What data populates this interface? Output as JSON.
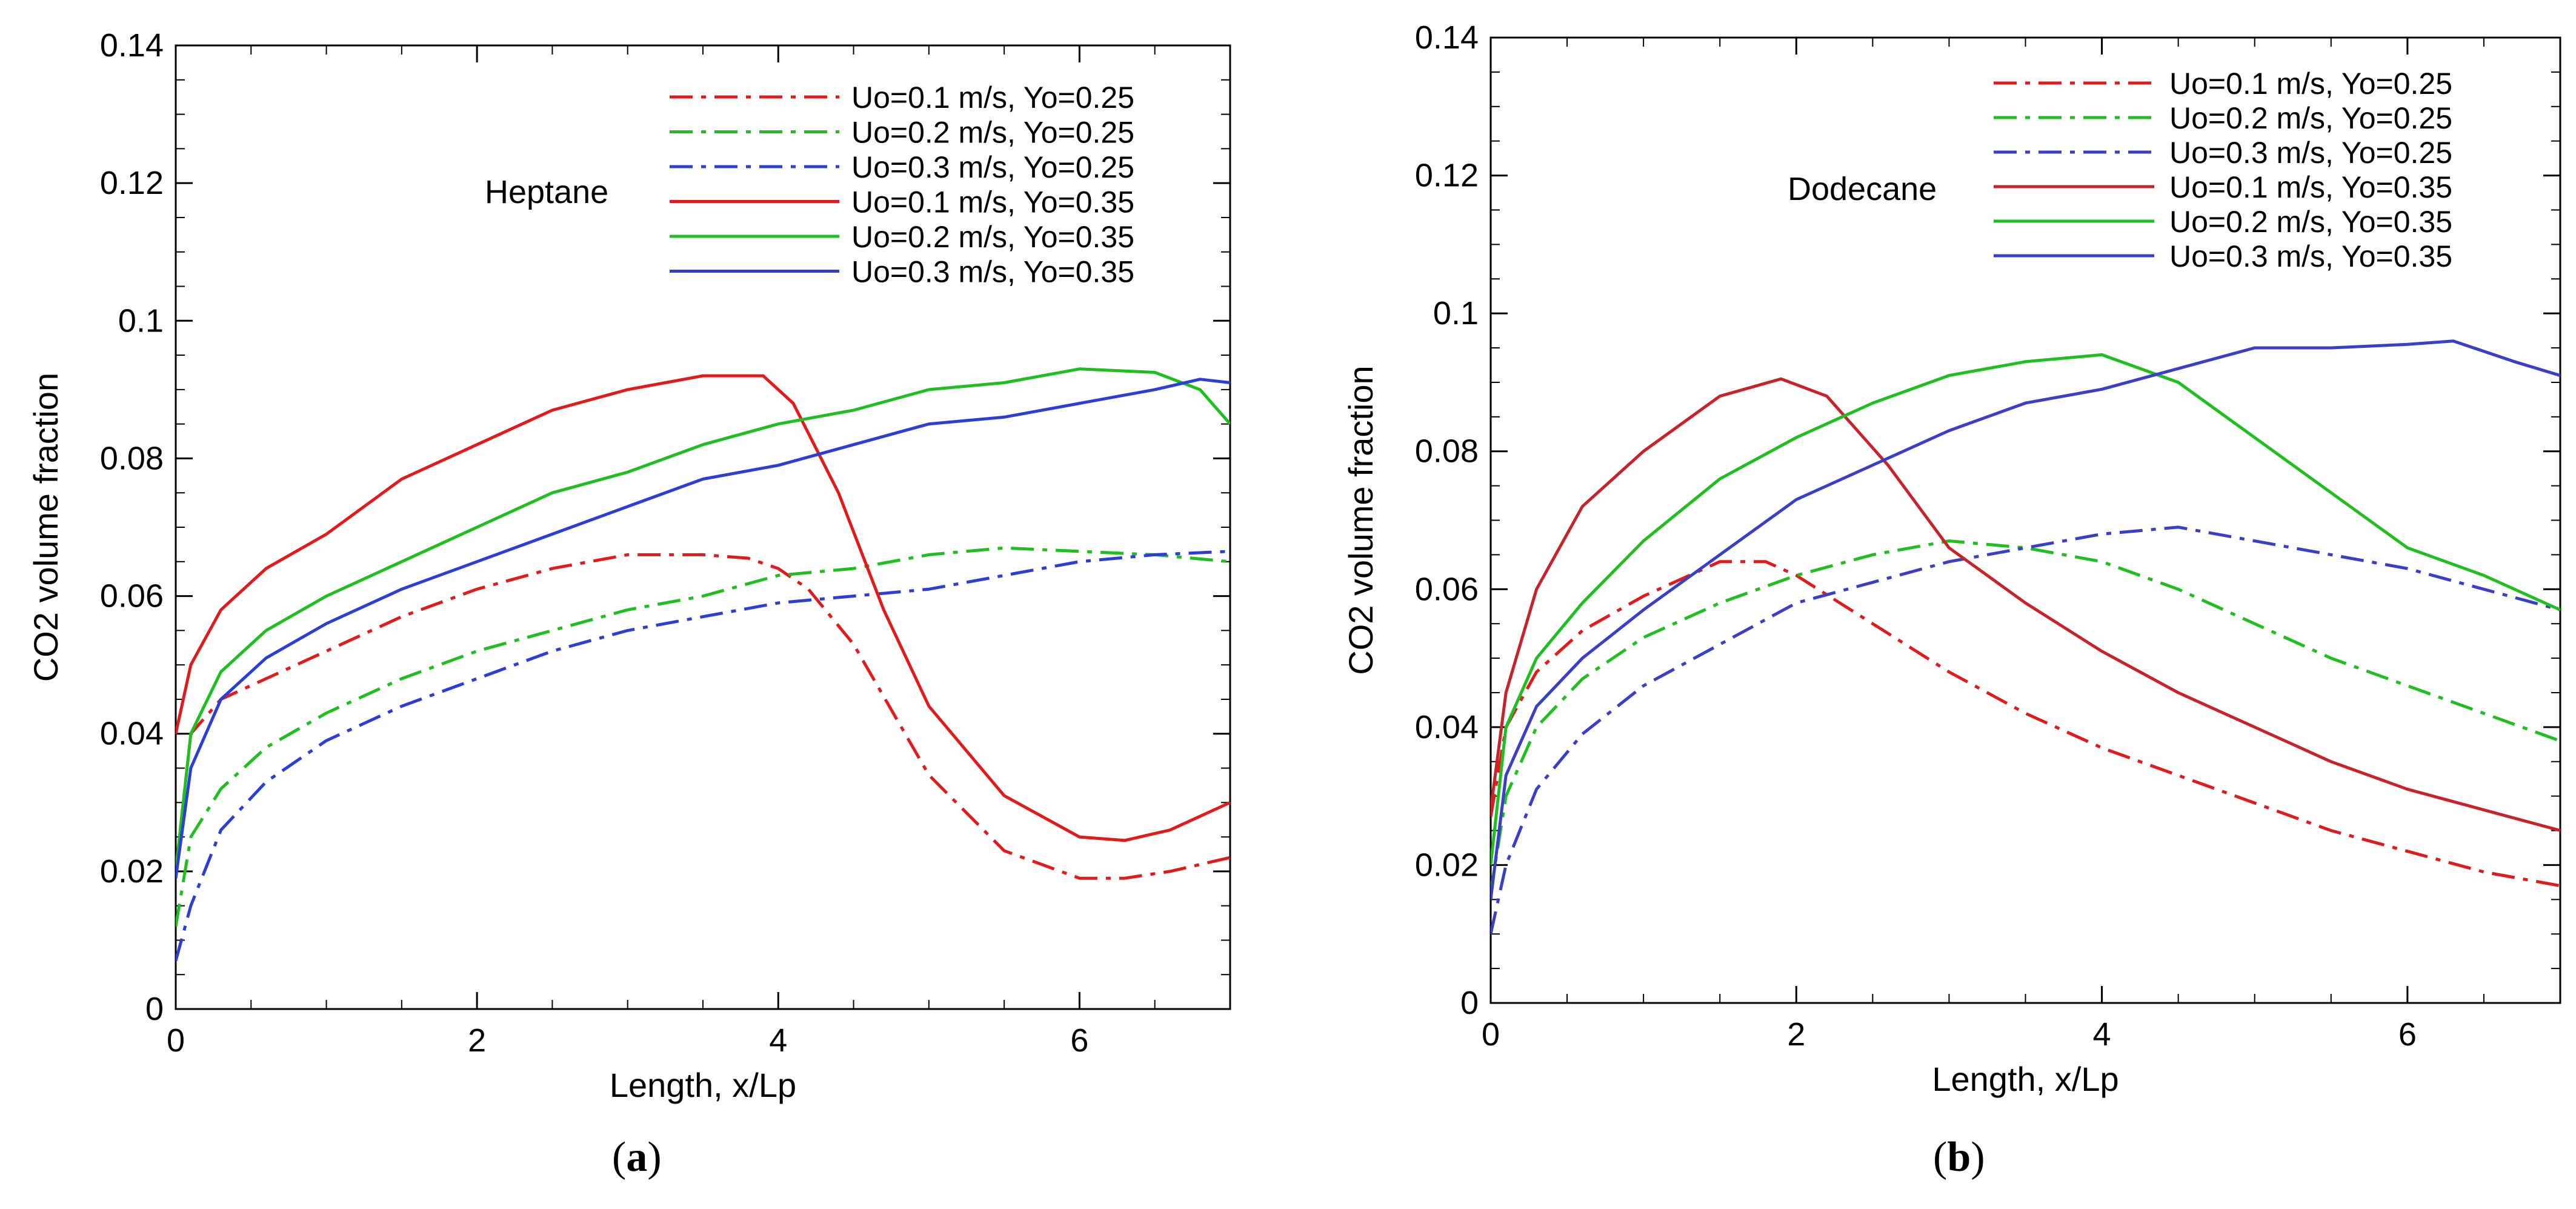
{
  "chart_data": [
    {
      "type": "line",
      "panel_label": "a",
      "annotation": "Heptane",
      "xlabel": "Length, x/Lp",
      "ylabel": "CO2 volume fraction",
      "xlim": [
        0,
        7
      ],
      "ylim": [
        0,
        0.14
      ],
      "xticks": [
        "0",
        "2",
        "4",
        "6"
      ],
      "yticks": [
        "0",
        "0.02",
        "0.04",
        "0.06",
        "0.08",
        "0.1",
        "0.12",
        "0.14"
      ],
      "grid": false,
      "legend_position": "top-right",
      "series": [
        {
          "name": "Uo=0.1 m/s, Yo=0.25",
          "color": "#e31a1c",
          "dash": "dashdot",
          "x": [
            0,
            0.1,
            0.3,
            0.6,
            1,
            1.5,
            2,
            2.5,
            3,
            3.5,
            3.8,
            4,
            4.2,
            4.5,
            5,
            5.5,
            6,
            6.3,
            6.6,
            7
          ],
          "y": [
            0.02,
            0.04,
            0.045,
            0.048,
            0.052,
            0.057,
            0.061,
            0.064,
            0.066,
            0.066,
            0.0655,
            0.064,
            0.061,
            0.053,
            0.034,
            0.023,
            0.019,
            0.019,
            0.02,
            0.022
          ]
        },
        {
          "name": "Uo=0.2 m/s, Yo=0.25",
          "color": "#1fbf1f",
          "dash": "dashdot",
          "x": [
            0,
            0.1,
            0.3,
            0.6,
            1,
            1.5,
            2,
            2.5,
            3,
            3.5,
            4,
            4.5,
            5,
            5.5,
            6,
            6.5,
            7
          ],
          "y": [
            0.012,
            0.025,
            0.032,
            0.038,
            0.043,
            0.048,
            0.052,
            0.055,
            0.058,
            0.06,
            0.063,
            0.064,
            0.066,
            0.067,
            0.0665,
            0.066,
            0.065
          ]
        },
        {
          "name": "Uo=0.3 m/s, Yo=0.25",
          "color": "#2b3fd8",
          "dash": "dashdot",
          "x": [
            0,
            0.1,
            0.3,
            0.6,
            1,
            1.5,
            2,
            2.5,
            3,
            3.5,
            4,
            4.5,
            5,
            5.5,
            6,
            6.5,
            7
          ],
          "y": [
            0.007,
            0.015,
            0.026,
            0.033,
            0.039,
            0.044,
            0.048,
            0.052,
            0.055,
            0.057,
            0.059,
            0.06,
            0.061,
            0.063,
            0.065,
            0.066,
            0.0665
          ]
        },
        {
          "name": "Uo=0.1 m/s, Yo=0.35",
          "color": "#e31a1c",
          "dash": "solid",
          "x": [
            0,
            0.1,
            0.3,
            0.6,
            1,
            1.5,
            2,
            2.5,
            3,
            3.5,
            3.9,
            4.1,
            4.4,
            4.7,
            5,
            5.5,
            6,
            6.3,
            6.6,
            7
          ],
          "y": [
            0.04,
            0.05,
            0.058,
            0.064,
            0.069,
            0.077,
            0.082,
            0.087,
            0.09,
            0.092,
            0.092,
            0.088,
            0.075,
            0.058,
            0.044,
            0.031,
            0.025,
            0.0245,
            0.026,
            0.03
          ]
        },
        {
          "name": "Uo=0.2 m/s, Yo=0.35",
          "color": "#1fbf1f",
          "dash": "solid",
          "x": [
            0,
            0.1,
            0.3,
            0.6,
            1,
            1.5,
            2,
            2.5,
            3,
            3.5,
            4,
            4.5,
            5,
            5.5,
            6,
            6.5,
            6.8,
            7
          ],
          "y": [
            0.02,
            0.04,
            0.049,
            0.055,
            0.06,
            0.065,
            0.07,
            0.075,
            0.078,
            0.082,
            0.085,
            0.087,
            0.09,
            0.091,
            0.093,
            0.0925,
            0.09,
            0.085
          ]
        },
        {
          "name": "Uo=0.3 m/s, Yo=0.35",
          "color": "#2b3fd8",
          "dash": "solid",
          "x": [
            0,
            0.1,
            0.3,
            0.6,
            1,
            1.5,
            2,
            2.5,
            3,
            3.5,
            4,
            4.5,
            5,
            5.5,
            6,
            6.5,
            6.8,
            7
          ],
          "y": [
            0.019,
            0.035,
            0.045,
            0.051,
            0.056,
            0.061,
            0.065,
            0.069,
            0.073,
            0.077,
            0.079,
            0.082,
            0.085,
            0.086,
            0.088,
            0.09,
            0.0915,
            0.091
          ]
        }
      ]
    },
    {
      "type": "line",
      "panel_label": "b",
      "annotation": "Dodecane",
      "xlabel": "Length, x/Lp",
      "ylabel": "CO2 volume fraction",
      "xlim": [
        0,
        7
      ],
      "ylim": [
        0,
        0.14
      ],
      "xticks": [
        "0",
        "2",
        "4",
        "6"
      ],
      "yticks": [
        "0",
        "0.02",
        "0.04",
        "0.06",
        "0.08",
        "0.1",
        "0.12",
        "0.14"
      ],
      "grid": false,
      "legend_position": "top-right",
      "series": [
        {
          "name": "Uo=0.1 m/s, Yo=0.25",
          "color": "#e31a1c",
          "dash": "dashdot",
          "x": [
            0,
            0.1,
            0.3,
            0.6,
            1,
            1.5,
            1.8,
            2,
            2.5,
            3,
            3.5,
            4,
            4.5,
            5,
            5.5,
            6,
            6.5,
            7
          ],
          "y": [
            0.027,
            0.04,
            0.048,
            0.054,
            0.059,
            0.064,
            0.064,
            0.062,
            0.055,
            0.048,
            0.042,
            0.037,
            0.033,
            0.029,
            0.025,
            0.022,
            0.019,
            0.017
          ]
        },
        {
          "name": "Uo=0.2 m/s, Yo=0.25",
          "color": "#1fbf1f",
          "dash": "dashdot",
          "x": [
            0,
            0.1,
            0.3,
            0.6,
            1,
            1.5,
            2,
            2.5,
            3,
            3.5,
            4,
            4.5,
            5,
            5.5,
            6,
            6.5,
            7
          ],
          "y": [
            0.016,
            0.03,
            0.04,
            0.047,
            0.053,
            0.058,
            0.062,
            0.065,
            0.067,
            0.066,
            0.064,
            0.06,
            0.055,
            0.05,
            0.046,
            0.042,
            0.038
          ]
        },
        {
          "name": "Uo=0.3 m/s, Yo=0.25",
          "color": "#3a3fc8",
          "dash": "dashdot",
          "x": [
            0,
            0.1,
            0.3,
            0.6,
            1,
            1.5,
            2,
            2.5,
            3,
            3.5,
            4,
            4.5,
            5,
            5.5,
            6,
            6.5,
            7
          ],
          "y": [
            0.01,
            0.02,
            0.031,
            0.039,
            0.046,
            0.052,
            0.058,
            0.061,
            0.064,
            0.066,
            0.068,
            0.069,
            0.067,
            0.065,
            0.063,
            0.06,
            0.057
          ]
        },
        {
          "name": "Uo=0.1 m/s, Yo=0.35",
          "color": "#c8232a",
          "dash": "solid",
          "x": [
            0,
            0.1,
            0.3,
            0.6,
            1,
            1.5,
            1.9,
            2.2,
            2.6,
            3,
            3.5,
            4,
            4.5,
            5,
            5.5,
            6,
            6.5,
            7
          ],
          "y": [
            0.028,
            0.045,
            0.06,
            0.072,
            0.08,
            0.088,
            0.0905,
            0.088,
            0.078,
            0.066,
            0.058,
            0.051,
            0.045,
            0.04,
            0.035,
            0.031,
            0.028,
            0.025
          ]
        },
        {
          "name": "Uo=0.2 m/s, Yo=0.35",
          "color": "#1fbf1f",
          "dash": "solid",
          "x": [
            0,
            0.1,
            0.3,
            0.6,
            1,
            1.5,
            2,
            2.5,
            3,
            3.5,
            4,
            4.5,
            5,
            5.5,
            6,
            6.5,
            7
          ],
          "y": [
            0.02,
            0.04,
            0.05,
            0.058,
            0.067,
            0.076,
            0.082,
            0.087,
            0.091,
            0.093,
            0.094,
            0.09,
            0.082,
            0.074,
            0.066,
            0.062,
            0.057
          ]
        },
        {
          "name": "Uo=0.3 m/s, Yo=0.35",
          "color": "#3a3fc8",
          "dash": "solid",
          "x": [
            0,
            0.1,
            0.3,
            0.6,
            1,
            1.5,
            2,
            2.5,
            3,
            3.5,
            4,
            4.5,
            5,
            5.5,
            6,
            6.3,
            6.7,
            7
          ],
          "y": [
            0.015,
            0.033,
            0.043,
            0.05,
            0.057,
            0.065,
            0.073,
            0.078,
            0.083,
            0.087,
            0.089,
            0.092,
            0.095,
            0.095,
            0.0955,
            0.096,
            0.093,
            0.091
          ]
        }
      ]
    }
  ]
}
